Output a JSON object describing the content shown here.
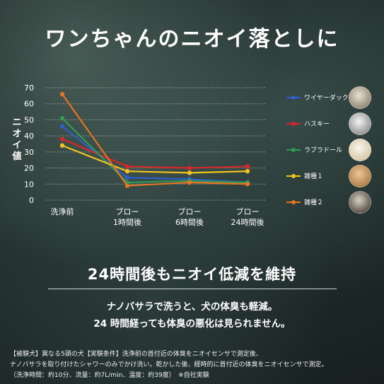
{
  "title": "ワンちゃんのニオイ落としに",
  "chart_data": {
    "type": "line",
    "ylabel": "ニオイ値",
    "ylim": [
      0,
      70
    ],
    "yticks": [
      0,
      10,
      20,
      30,
      40,
      50,
      60,
      70
    ],
    "categories": [
      "洗浄前",
      "ブロー\n1時間後",
      "ブロー\n6時間後",
      "ブロー\n24時間後"
    ],
    "grid": true,
    "legend_position": "right",
    "series": [
      {
        "name": "ワイヤーダックス",
        "color": "#2f5fc8",
        "values": [
          46,
          14,
          13,
          11
        ]
      },
      {
        "name": "ハスキー",
        "color": "#d8262a",
        "values": [
          38,
          21,
          20,
          21
        ]
      },
      {
        "name": "ラブラドール",
        "color": "#2f9a55",
        "values": [
          51,
          11,
          12,
          11
        ]
      },
      {
        "name": "雑種１",
        "color": "#f0c21e",
        "values": [
          34,
          18,
          17,
          18
        ]
      },
      {
        "name": "雑種２",
        "color": "#e57522",
        "values": [
          66,
          9,
          11,
          10
        ]
      }
    ]
  },
  "subtitle": "24時間後もニオイ低減を維持",
  "desc_lines": [
    "ナノバサラで洗うと、犬の体臭も軽減。",
    "24 時間経っても体臭の悪化は見られません。"
  ],
  "notes": [
    "【被験犬】異なる5頭の犬【実験条件】洗浄前の首付近の体臭をニオイセンサで測定後、",
    "ナノバサラを取り付けたシャワーのみでかけ洗い。乾かした後、経時的に首付近の体臭をニオイセンサで測定。",
    "（洗浄時間：約10分、流量：約7L/min、温度：約39度）　※自社実験"
  ]
}
